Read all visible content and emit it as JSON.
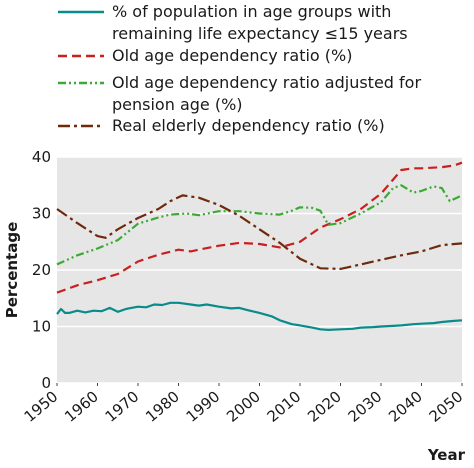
{
  "chart_data": {
    "type": "line",
    "title": "",
    "xlabel": "Year",
    "ylabel": "Percentage",
    "xlim": [
      1950,
      2050
    ],
    "ylim": [
      0,
      40
    ],
    "x_ticks": [
      "1950",
      "1960",
      "1970",
      "1980",
      "1990",
      "2000",
      "2010",
      "2020",
      "2030",
      "2040",
      "2050"
    ],
    "y_ticks": [
      "0",
      "10",
      "20",
      "30",
      "40"
    ],
    "grid": true,
    "legend_position": "top",
    "series": [
      {
        "name": "% of population in age groups with remaining life expectancy ≤15 years",
        "legend_lines": [
          "% of population in age groups with",
          "remaining life expectancy ≤15 years"
        ],
        "color": "#0a8b8b",
        "style": "solid",
        "x": [
          1950,
          1951,
          1952,
          1953,
          1955,
          1957,
          1959,
          1961,
          1962,
          1963,
          1965,
          1967,
          1970,
          1972,
          1974,
          1976,
          1978,
          1980,
          1983,
          1985,
          1987,
          1990,
          1993,
          1995,
          1997,
          2000,
          2003,
          2005,
          2008,
          2010,
          2013,
          2015,
          2017,
          2020,
          2023,
          2025,
          2028,
          2030,
          2033,
          2035,
          2038,
          2040,
          2043,
          2045,
          2048,
          2050
        ],
        "y": [
          12.2,
          13.1,
          12.4,
          12.4,
          12.8,
          12.5,
          12.8,
          12.7,
          13.0,
          13.3,
          12.6,
          13.1,
          13.5,
          13.4,
          13.9,
          13.8,
          14.2,
          14.2,
          13.9,
          13.7,
          13.9,
          13.5,
          13.2,
          13.3,
          12.9,
          12.4,
          11.8,
          11.1,
          10.4,
          10.2,
          9.8,
          9.5,
          9.4,
          9.5,
          9.6,
          9.8,
          9.9,
          10.0,
          10.1,
          10.2,
          10.4,
          10.5,
          10.6,
          10.8,
          11.0,
          11.1
        ]
      },
      {
        "name": "Old age dependency ratio (%)",
        "legend_lines": [
          "Old age dependency ratio (%)"
        ],
        "color": "#c8201e",
        "style": "dashed",
        "x": [
          1950,
          1955,
          1960,
          1965,
          1970,
          1975,
          1980,
          1983,
          1985,
          1990,
          1995,
          2000,
          2005,
          2010,
          2015,
          2020,
          2025,
          2030,
          2033,
          2035,
          2038,
          2040,
          2045,
          2048,
          2050
        ],
        "y": [
          16.0,
          17.3,
          18.2,
          19.3,
          21.5,
          22.7,
          23.6,
          23.3,
          23.6,
          24.3,
          24.8,
          24.6,
          24.0,
          25.0,
          27.5,
          29.0,
          30.8,
          33.5,
          36.0,
          37.7,
          38.0,
          38.0,
          38.2,
          38.5,
          39.0
        ]
      },
      {
        "name": "Old age dependency ratio adjusted for pension age (%)",
        "legend_lines": [
          "Old age dependency ratio adjusted for",
          "pension age (%)"
        ],
        "color": "#3aaa35",
        "style": "dash-dot-dot",
        "x": [
          1950,
          1955,
          1960,
          1965,
          1970,
          1975,
          1978,
          1982,
          1985,
          1990,
          1995,
          2000,
          2005,
          2008,
          2010,
          2013,
          2015,
          2017,
          2020,
          2025,
          2030,
          2033,
          2035,
          2038,
          2040,
          2043,
          2045,
          2047,
          2050
        ],
        "y": [
          21.0,
          22.6,
          23.8,
          25.3,
          28.2,
          29.3,
          29.8,
          30.0,
          29.7,
          30.4,
          30.4,
          30.0,
          29.8,
          30.5,
          31.1,
          31.0,
          30.5,
          28.0,
          28.3,
          30.0,
          32.0,
          34.5,
          35.0,
          33.7,
          34.0,
          34.8,
          34.5,
          32.2,
          33.2
        ]
      },
      {
        "name": "Real elderly dependency ratio (%)",
        "legend_lines": [
          "Real elderly dependency ratio (%)"
        ],
        "color": "#6e2a0d",
        "style": "dash-dot",
        "x": [
          1950,
          1955,
          1960,
          1962,
          1965,
          1970,
          1975,
          1978,
          1981,
          1985,
          1990,
          1995,
          2000,
          2005,
          2010,
          2015,
          2020,
          2025,
          2030,
          2035,
          2040,
          2045,
          2050
        ],
        "y": [
          30.8,
          28.3,
          26.0,
          25.7,
          27.2,
          29.2,
          30.8,
          32.2,
          33.2,
          32.8,
          31.5,
          29.6,
          27.2,
          24.8,
          22.0,
          20.3,
          20.2,
          21.0,
          21.8,
          22.6,
          23.3,
          24.4,
          24.7
        ]
      }
    ]
  }
}
